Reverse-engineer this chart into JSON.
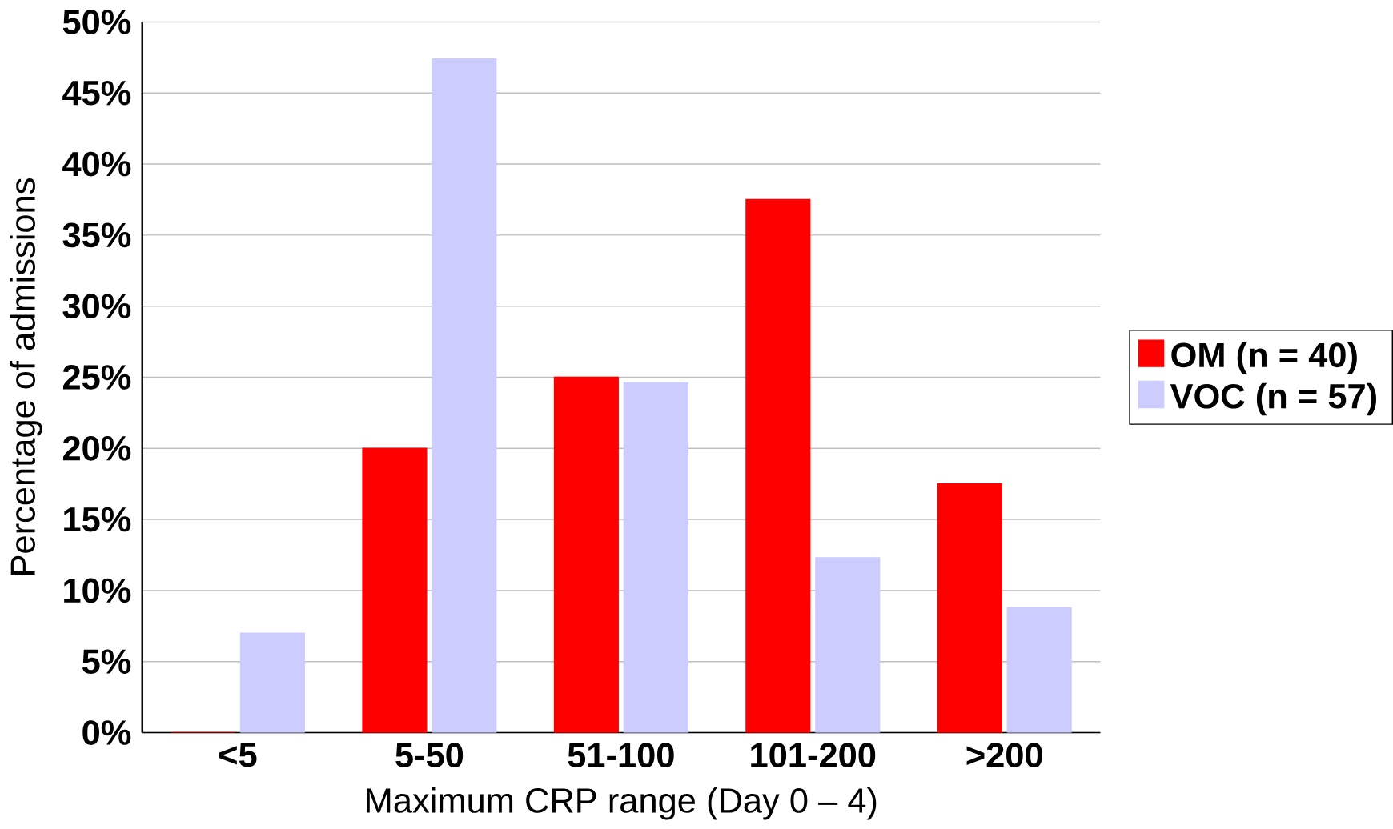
{
  "chart_data": {
    "type": "bar",
    "xlabel": "Maximum CRP range (Day 0 – 4)",
    "ylabel": "Percentage of admissions",
    "categories": [
      "<5",
      "5-50",
      "51-100",
      "101-200",
      ">200"
    ],
    "series": [
      {
        "name": "OM (n = 40)",
        "color": "#ff0000",
        "values": [
          0,
          20,
          25,
          37.5,
          17.5
        ]
      },
      {
        "name": "VOC (n = 57)",
        "color": "#ccccff",
        "values": [
          7,
          47.4,
          24.6,
          12.3,
          8.8
        ]
      }
    ],
    "ylim": [
      0,
      50
    ],
    "yticks": [
      {
        "value": 0,
        "label": "0%"
      },
      {
        "value": 5,
        "label": "5%"
      },
      {
        "value": 10,
        "label": "10%"
      },
      {
        "value": 15,
        "label": "15%"
      },
      {
        "value": 20,
        "label": "20%"
      },
      {
        "value": 25,
        "label": "25%"
      },
      {
        "value": 30,
        "label": "30%"
      },
      {
        "value": 35,
        "label": "35%"
      },
      {
        "value": 40,
        "label": "40%"
      },
      {
        "value": 45,
        "label": "45%"
      },
      {
        "value": 50,
        "label": "50%"
      }
    ],
    "grid": "y",
    "legend": "right"
  }
}
